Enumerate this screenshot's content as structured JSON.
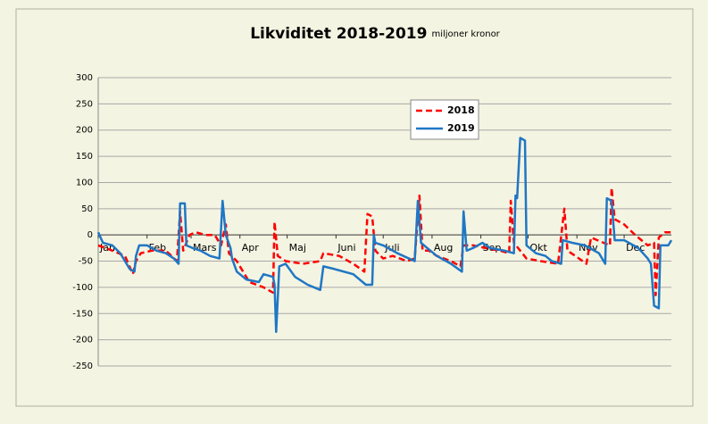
{
  "chart_data": {
    "type": "line",
    "title": "Likviditet 2018-2019",
    "subtitle": "miljoner kronor",
    "xlim": [
      1,
      365
    ],
    "xticks": [
      {
        "value": 1,
        "label": "Jan"
      },
      {
        "value": 32,
        "label": "Feb"
      },
      {
        "value": 60,
        "label": "Mars"
      },
      {
        "value": 91,
        "label": "Apr"
      },
      {
        "value": 121,
        "label": "Maj"
      },
      {
        "value": 152,
        "label": "Juni"
      },
      {
        "value": 182,
        "label": "Juli"
      },
      {
        "value": 213,
        "label": "Aug"
      },
      {
        "value": 244,
        "label": "Sep"
      },
      {
        "value": 274,
        "label": "Okt"
      },
      {
        "value": 305,
        "label": "Nov"
      },
      {
        "value": 335,
        "label": "Dec"
      }
    ],
    "ylim": [
      -250,
      300
    ],
    "yticks": [
      -250,
      -200,
      -150,
      -100,
      -50,
      0,
      50,
      100,
      150,
      200,
      250,
      300
    ],
    "grid": true,
    "series": [
      {
        "name": "2018",
        "color": "#ff0000",
        "dash": true,
        "x": [
          1,
          10,
          18,
          23,
          25,
          28,
          35,
          44,
          51,
          53,
          55,
          59,
          63,
          69,
          75,
          79,
          82,
          84,
          89,
          97,
          106,
          112,
          113,
          115,
          120,
          131,
          142,
          144,
          154,
          163,
          170,
          172,
          175,
          177,
          182,
          188,
          197,
          202,
          205,
          207,
          211,
          216,
          225,
          231,
          233,
          239,
          247,
          256,
          262,
          263,
          265,
          273,
          282,
          293,
          297,
          299,
          304,
          311,
          314,
          318,
          326,
          327,
          329,
          335,
          342,
          350,
          354,
          355,
          357,
          361,
          365
        ],
        "values": [
          -20,
          -30,
          -40,
          -75,
          -50,
          -35,
          -30,
          -30,
          -50,
          45,
          -30,
          0,
          5,
          0,
          0,
          -20,
          20,
          -35,
          -50,
          -90,
          -100,
          -110,
          25,
          -40,
          -50,
          -55,
          -50,
          -35,
          -40,
          -55,
          -70,
          40,
          35,
          -30,
          -45,
          -40,
          -50,
          -45,
          75,
          -30,
          -30,
          -40,
          -50,
          -60,
          -20,
          -20,
          -25,
          -30,
          -35,
          65,
          -15,
          -45,
          -50,
          -55,
          50,
          -30,
          -40,
          -55,
          -5,
          -10,
          -20,
          90,
          30,
          20,
          0,
          -20,
          -15,
          -115,
          -5,
          5,
          5
        ]
      },
      {
        "name": "2019",
        "color": "#1f77c4",
        "dash": false,
        "x": [
          1,
          4,
          10,
          15,
          21,
          24,
          25,
          27,
          32,
          38,
          44,
          49,
          52,
          53,
          56,
          57,
          61,
          66,
          72,
          78,
          80,
          82,
          85,
          86,
          89,
          95,
          103,
          106,
          112,
          113,
          114,
          116,
          120,
          126,
          134,
          142,
          144,
          151,
          163,
          171,
          175,
          176,
          177,
          182,
          191,
          202,
          204,
          206,
          210,
          216,
          225,
          232,
          233,
          235,
          239,
          245,
          250,
          259,
          265,
          266,
          267,
          269,
          272,
          273,
          279,
          285,
          289,
          295,
          296,
          302,
          310,
          319,
          323,
          324,
          327,
          329,
          335,
          344,
          350,
          352,
          354,
          357,
          358,
          363,
          365
        ],
        "values": [
          5,
          -15,
          -20,
          -35,
          -65,
          -70,
          -40,
          -20,
          -20,
          -30,
          -35,
          -45,
          -55,
          60,
          60,
          -20,
          -25,
          -30,
          -40,
          -45,
          65,
          0,
          -25,
          -45,
          -70,
          -85,
          -90,
          -75,
          -80,
          -95,
          -185,
          -60,
          -55,
          -80,
          -95,
          -105,
          -60,
          -65,
          -75,
          -95,
          -95,
          0,
          -15,
          -20,
          -35,
          -50,
          65,
          -15,
          -25,
          -40,
          -55,
          -70,
          45,
          -30,
          -25,
          -15,
          -25,
          -30,
          -35,
          75,
          70,
          185,
          180,
          -20,
          -35,
          -40,
          -50,
          -55,
          -10,
          -15,
          -20,
          -35,
          -55,
          70,
          65,
          -10,
          -10,
          -25,
          -45,
          -55,
          -135,
          -140,
          -20,
          -20,
          -10
        ]
      }
    ]
  }
}
